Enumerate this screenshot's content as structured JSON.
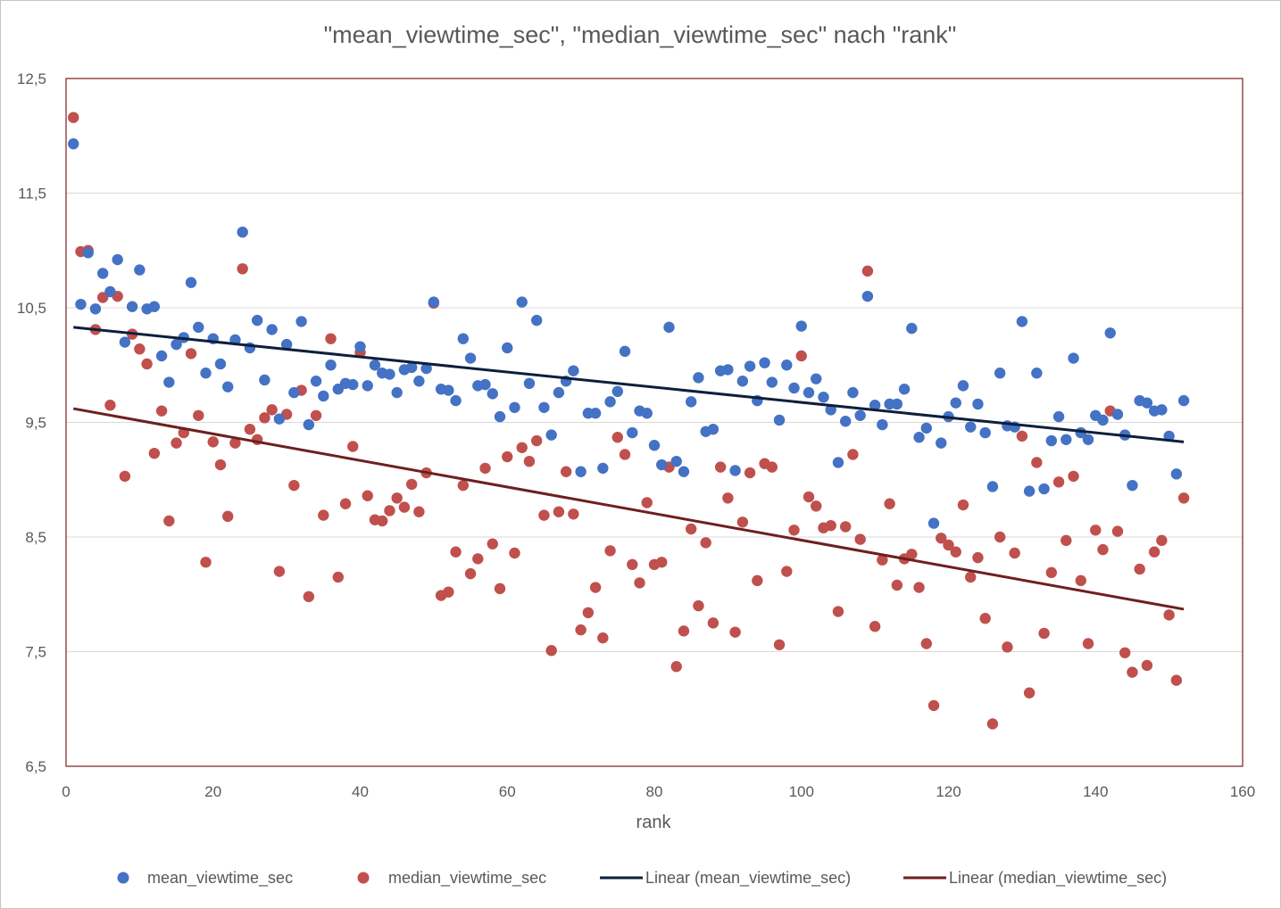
{
  "chart_data": {
    "type": "scatter",
    "title": "\"mean_viewtime_sec\", \"median_viewtime_sec\" nach \"rank\"",
    "xlabel": "rank",
    "ylabel": "",
    "xlim": [
      0,
      160
    ],
    "ylim": [
      6.5,
      12.5
    ],
    "x_ticks": [
      0,
      20,
      40,
      60,
      80,
      100,
      120,
      140,
      160
    ],
    "y_ticks": [
      6.5,
      7.5,
      8.5,
      9.5,
      10.5,
      11.5,
      12.5
    ],
    "x_tick_labels": [
      "0",
      "20",
      "40",
      "60",
      "80",
      "100",
      "120",
      "140",
      "160"
    ],
    "y_tick_labels": [
      "6,5",
      "7,5",
      "8,5",
      "9,5",
      "10,5",
      "11,5",
      "12,5"
    ],
    "grid": "horizontal",
    "legend_position": "bottom",
    "colors": {
      "mean": "#4472c4",
      "median": "#c0504d",
      "mean_trend": "#0e1f3d",
      "median_trend": "#6e1f1f",
      "plot_border": "#7b1f1f",
      "grid": "#d9d9d9"
    },
    "series": [
      {
        "name": "mean_viewtime_sec",
        "values": [
          11.93,
          10.53,
          10.98,
          10.49,
          10.8,
          10.64,
          10.92,
          10.2,
          10.51,
          10.83,
          10.49,
          10.51,
          10.08,
          9.85,
          10.18,
          10.24,
          10.72,
          10.33,
          9.93,
          10.23,
          10.01,
          9.81,
          10.22,
          11.16,
          10.15,
          10.39,
          9.87,
          10.31,
          9.53,
          10.18,
          9.76,
          10.38,
          9.48,
          9.86,
          9.73,
          10.0,
          9.79,
          9.84,
          9.83,
          10.16,
          9.82,
          10.0,
          9.93,
          9.92,
          9.76,
          9.96,
          9.98,
          9.86,
          9.97,
          10.55,
          9.79,
          9.78,
          9.69,
          10.23,
          10.06,
          9.82,
          9.83,
          9.75,
          9.55,
          10.15,
          9.63,
          10.55,
          9.84,
          10.39,
          9.63,
          9.39,
          9.76,
          9.86,
          9.95,
          9.07,
          9.58,
          9.58,
          9.1,
          9.68,
          9.77,
          10.12,
          9.41,
          9.6,
          9.58,
          9.3,
          9.13,
          10.33,
          9.16,
          9.07,
          9.68,
          9.89,
          9.42,
          9.44,
          9.95,
          9.96,
          9.08,
          9.86,
          9.99,
          9.69,
          10.02,
          9.85,
          9.52,
          10.0,
          9.8,
          10.34,
          9.76,
          9.88,
          9.72,
          9.61,
          9.15,
          9.51,
          9.76,
          9.56,
          10.6,
          9.65,
          9.48,
          9.66,
          9.66,
          9.79,
          10.32,
          9.37,
          9.45,
          8.62,
          9.32,
          9.55,
          9.67,
          9.82,
          9.46,
          9.66,
          9.41,
          8.94,
          9.93,
          9.47,
          9.46,
          10.38,
          8.9,
          9.93,
          8.92,
          9.34,
          9.55,
          9.35,
          10.06,
          9.41,
          9.35,
          9.56,
          9.52,
          10.28,
          9.57,
          9.39,
          8.95,
          9.69,
          9.67,
          9.6,
          9.61,
          9.38,
          9.05,
          9.69
        ]
      },
      {
        "name": "median_viewtime_sec",
        "values": [
          12.16,
          10.99,
          11.0,
          10.31,
          10.59,
          9.65,
          10.6,
          9.03,
          10.27,
          10.14,
          10.01,
          9.23,
          9.6,
          8.64,
          9.32,
          9.41,
          10.1,
          9.56,
          8.28,
          9.33,
          9.13,
          8.68,
          9.32,
          10.84,
          9.44,
          9.35,
          9.54,
          9.61,
          8.2,
          9.57,
          8.95,
          9.78,
          7.98,
          9.56,
          8.69,
          10.23,
          8.15,
          8.79,
          9.29,
          10.11,
          8.86,
          8.65,
          8.64,
          8.73,
          8.84,
          8.76,
          8.96,
          8.72,
          9.06,
          10.54,
          7.99,
          8.02,
          8.37,
          8.95,
          8.18,
          8.31,
          9.1,
          8.44,
          8.05,
          9.2,
          8.36,
          9.28,
          9.16,
          9.34,
          8.69,
          7.51,
          8.72,
          9.07,
          8.7,
          7.69,
          7.84,
          8.06,
          7.62,
          8.38,
          9.37,
          9.22,
          8.26,
          8.1,
          8.8,
          8.26,
          8.28,
          9.11,
          7.37,
          7.68,
          8.57,
          7.9,
          8.45,
          7.75,
          9.11,
          8.84,
          7.67,
          8.63,
          9.06,
          8.12,
          9.14,
          9.11,
          7.56,
          8.2,
          8.56,
          10.08,
          8.85,
          8.77,
          8.58,
          8.6,
          7.85,
          8.59,
          9.22,
          8.48,
          10.82,
          7.72,
          8.3,
          8.79,
          8.08,
          8.31,
          8.35,
          8.06,
          7.57,
          7.03,
          8.49,
          8.43,
          8.37,
          8.78,
          8.15,
          8.32,
          7.79,
          6.87,
          8.5,
          7.54,
          8.36,
          9.38,
          7.14,
          9.15,
          7.66,
          8.19,
          8.98,
          8.47,
          9.03,
          8.12,
          7.57,
          8.56,
          8.39,
          9.6,
          8.55,
          7.49,
          7.32,
          8.22,
          7.38,
          8.37,
          8.47,
          7.82,
          7.25,
          8.84
        ]
      }
    ],
    "trendlines": [
      {
        "name": "Linear (mean_viewtime_sec)",
        "type": "linear",
        "x": [
          1,
          152
        ],
        "y": [
          10.33,
          9.33
        ]
      },
      {
        "name": "Linear (median_viewtime_sec)",
        "type": "linear",
        "x": [
          1,
          152
        ],
        "y": [
          9.62,
          7.87
        ]
      }
    ]
  }
}
